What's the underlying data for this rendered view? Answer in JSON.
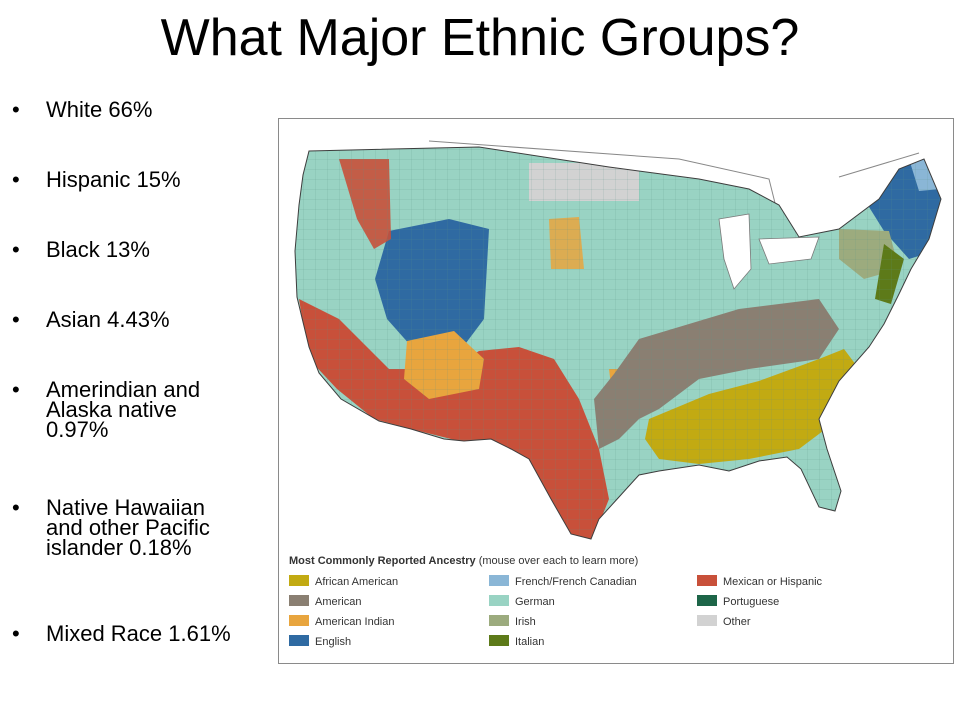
{
  "slide": {
    "title": "What Major Ethnic Groups?"
  },
  "bullets": [
    {
      "marker": "•",
      "text": "White 66%"
    },
    {
      "marker": "•",
      "text": "Hispanic 15%"
    },
    {
      "marker": "•",
      "text": "Black 13%"
    },
    {
      "marker": "•",
      "text": "Asian 4.43%"
    },
    {
      "marker": "•",
      "text": "Amerindian and\nAlaska native\n0.97%"
    },
    {
      "marker": "•",
      "text": "Native Hawaiian\nand other Pacific\nislander 0.18%"
    },
    {
      "marker": "•",
      "text": "Mixed Race 1.61%"
    }
  ],
  "map": {
    "legend_title": "Most Commonly Reported Ancestry",
    "legend_hint": "(mouse over each to learn more)",
    "legend": [
      {
        "label": "African American",
        "color": "#c2aa12"
      },
      {
        "label": "American",
        "color": "#8a7f72"
      },
      {
        "label": "American Indian",
        "color": "#e8a53e"
      },
      {
        "label": "English",
        "color": "#2f6aa2"
      },
      {
        "label": "French/French Canadian",
        "color": "#8ab6d6"
      },
      {
        "label": "German",
        "color": "#99d3c3"
      },
      {
        "label": "Irish",
        "color": "#9cab7e"
      },
      {
        "label": "Italian",
        "color": "#5d7a19"
      },
      {
        "label": "Mexican or Hispanic",
        "color": "#c8503a"
      },
      {
        "label": "Portuguese",
        "color": "#1d6548"
      },
      {
        "label": "Other",
        "color": "#d2d2d2"
      }
    ]
  }
}
